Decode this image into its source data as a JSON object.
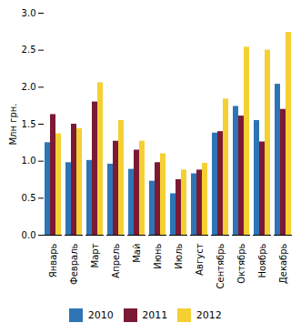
{
  "chart_data": {
    "type": "bar",
    "categories": [
      "Январь",
      "Февраль",
      "Март",
      "Апрель",
      "Май",
      "Июнь",
      "Июль",
      "Август",
      "Сентябрь",
      "Октябрь",
      "Ноябрь",
      "Декабрь"
    ],
    "series": [
      {
        "name": "2010",
        "color": "#2E75B6",
        "values": [
          1.25,
          0.98,
          1.01,
          0.96,
          0.89,
          0.73,
          0.56,
          0.83,
          1.38,
          1.74,
          1.55,
          2.04
        ]
      },
      {
        "name": "2011",
        "color": "#7B1A35",
        "values": [
          1.63,
          1.5,
          1.8,
          1.27,
          1.15,
          0.98,
          0.75,
          0.88,
          1.4,
          1.61,
          1.26,
          1.7
        ]
      },
      {
        "name": "2012",
        "color": "#F5D033",
        "values": [
          1.37,
          1.44,
          2.06,
          1.55,
          1.27,
          1.1,
          0.88,
          0.97,
          1.84,
          2.54,
          2.5,
          2.74
        ]
      }
    ],
    "ylabel": "Млн грн.",
    "ylim": [
      0,
      3.0
    ],
    "yticks": [
      {
        "value": 0.0,
        "label": "0.0"
      },
      0.5,
      {
        "value": 1.0,
        "label": "1.0"
      },
      1.5,
      {
        "value": 2.0,
        "label": "2.0"
      },
      2.5,
      {
        "value": 3.0,
        "label": "3.0"
      }
    ],
    "grid": false,
    "legend": "bottom"
  }
}
